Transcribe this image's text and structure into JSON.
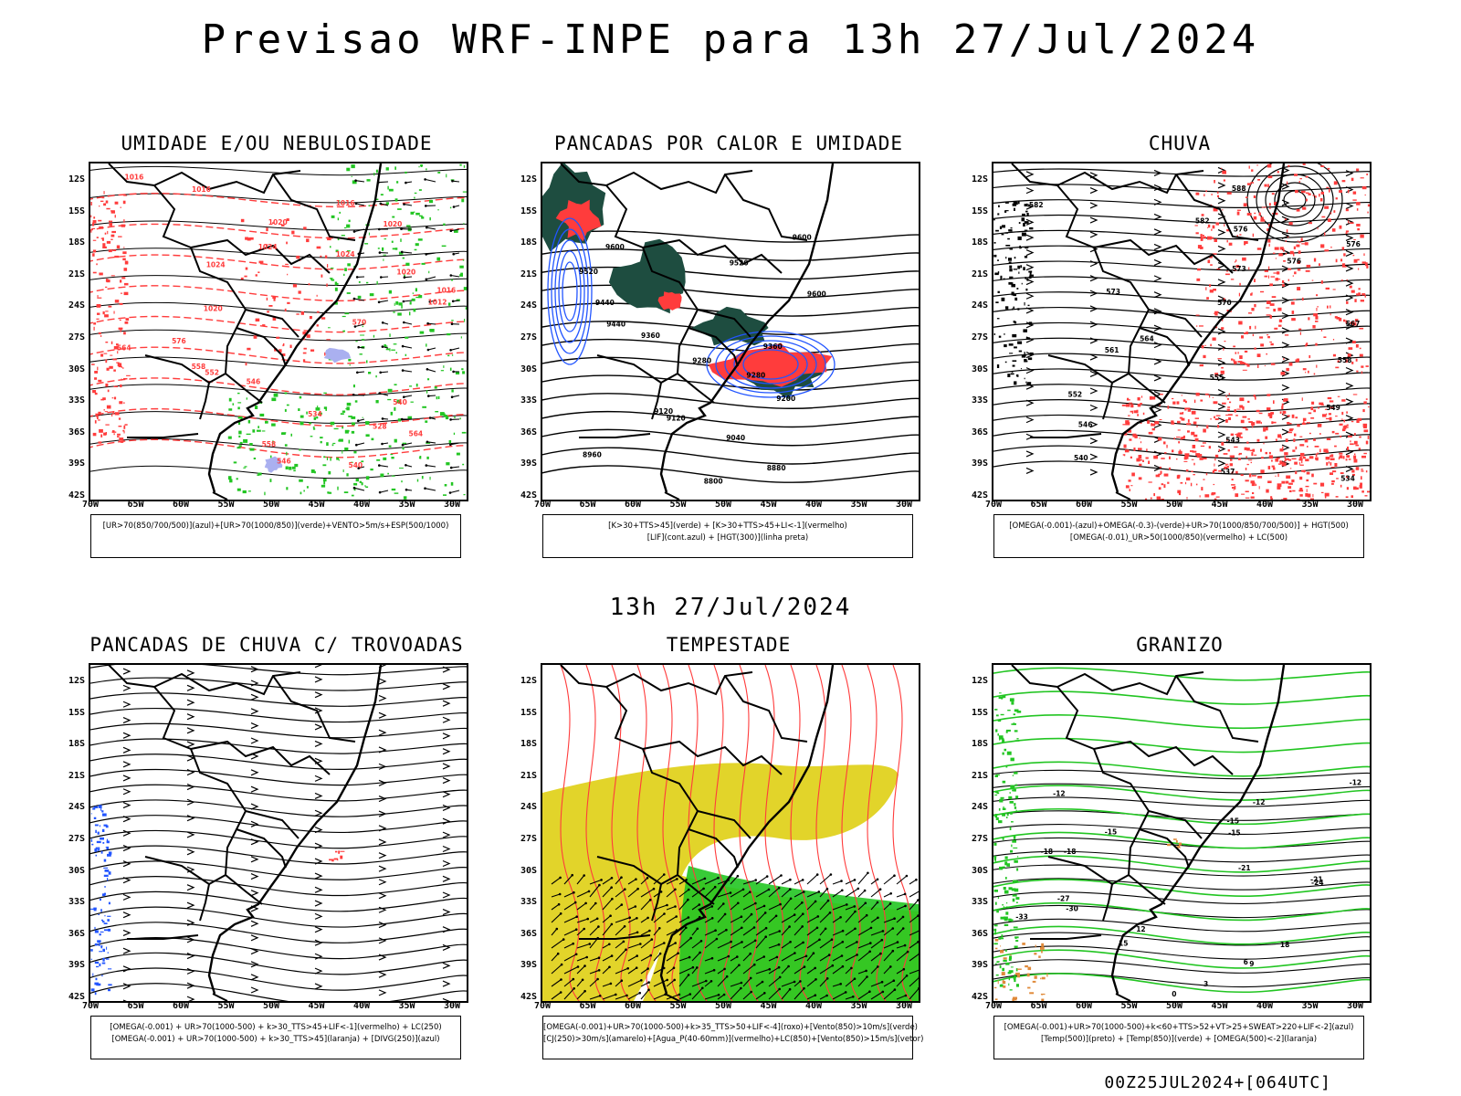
{
  "title": "Previsao WRF-INPE  para 13h 27/Jul/2024",
  "mid_title": "13h 27/Jul/2024",
  "footer": "00Z25JUL2024+[064UTC]",
  "lat_labels": [
    "12S",
    "15S",
    "18S",
    "21S",
    "24S",
    "27S",
    "30S",
    "33S",
    "36S",
    "39S",
    "42S"
  ],
  "lon_labels": [
    "70W",
    "65W",
    "60W",
    "55W",
    "50W",
    "45W",
    "40W",
    "35W",
    "30W"
  ],
  "colors": {
    "red": "#ff3c3c",
    "green": "#22c522",
    "blue": "#2255ff",
    "darkgreen": "#1e4d40",
    "yellow": "#e2d42a",
    "orange": "#e08a3a",
    "lavender": "#aab0f0"
  },
  "panels": [
    {
      "title": "UMIDADE E/OU NEBULOSIDADE",
      "legend": [
        "[UR>70(850/700/500)](azul)+[UR>70(1000/850)](verde)+VENTO>5m/s+ESP(500/1000)"
      ],
      "labels": [
        "1016",
        "1016",
        "1016",
        "1020",
        "1020",
        "1024",
        "1024",
        "1024",
        "1020",
        "1016",
        "1012",
        "1020",
        "570",
        "576",
        "564",
        "558",
        "552",
        "546",
        "540",
        "534",
        "528",
        "564",
        "558",
        "546",
        "540"
      ]
    },
    {
      "title": "PANCADAS POR CALOR E UMIDADE",
      "legend": [
        "[K>30+TTS>45](verde) + [K>30+TTS>45+LI<-1](vermelho)",
        "[LIF](cont.azul) + [HGT(300)](linha preta)"
      ],
      "labels": [
        "9600",
        "9600",
        "9520",
        "9520",
        "9600",
        "9440",
        "9440",
        "9360",
        "9360",
        "9280",
        "9280",
        "9200",
        "9120",
        "9120",
        "9040",
        "8960",
        "8880",
        "8800"
      ]
    },
    {
      "title": "CHUVA",
      "legend": [
        "[OMEGA(-0.001)-(azul)+OMEGA(-0.3)-(verde)+UR>70(1000/850/700/500)] + HGT(500)",
        "[OMEGA(-0.01)_UR>50(1000/850)(vermelho) + LC(500)"
      ],
      "labels": [
        "588",
        "582",
        "582",
        "576",
        "576",
        "576",
        "573",
        "573",
        "570",
        "567",
        "564",
        "561",
        "558",
        "555",
        "552",
        "549",
        "546",
        "543",
        "540",
        "537",
        "534"
      ]
    },
    {
      "title": "PANCADAS DE CHUVA C/ TROVOADAS",
      "legend": [
        "[OMEGA(-0.001) + UR>70(1000-500) + k>30_TTS>45+LIF<-1](vermelho) + LC(250)",
        "[OMEGA(-0.001) + UR>70(1000-500) + k>30_TTS>45](laranja) + [DIVG(250)](azul)"
      ],
      "labels": []
    },
    {
      "title": "TEMPESTADE",
      "legend": [
        "[OMEGA(-0.001)+UR>70(1000-500)+k>35_TTS>50+LIF<-4](roxo)+[Vento(850)>10m/s](verde)",
        "[CJ(250)>30m/s](amarelo)+[Agua_P(40-60mm)](vermelho)+LC(850)+[Vento(850)>15m/s](vetor)"
      ],
      "labels": []
    },
    {
      "title": "GRANIZO",
      "legend": [
        "[OMEGA(-0.001)+UR>70(1000-500)+k<60+TTS>52+VT>25+SWEAT>220+LIF<-2](azul)",
        "[Temp(500)](preto) + [Temp(850)](verde) + [OMEGA(500)<-2](laranja)"
      ],
      "labels": [
        "-12",
        "-12",
        "-12",
        "-15",
        "-15",
        "-15",
        "-18",
        "-18",
        "-21",
        "-21",
        "-24",
        "-27",
        "-30",
        "-33",
        "12",
        "15",
        "18",
        "9",
        "6",
        "3",
        "0"
      ]
    }
  ]
}
